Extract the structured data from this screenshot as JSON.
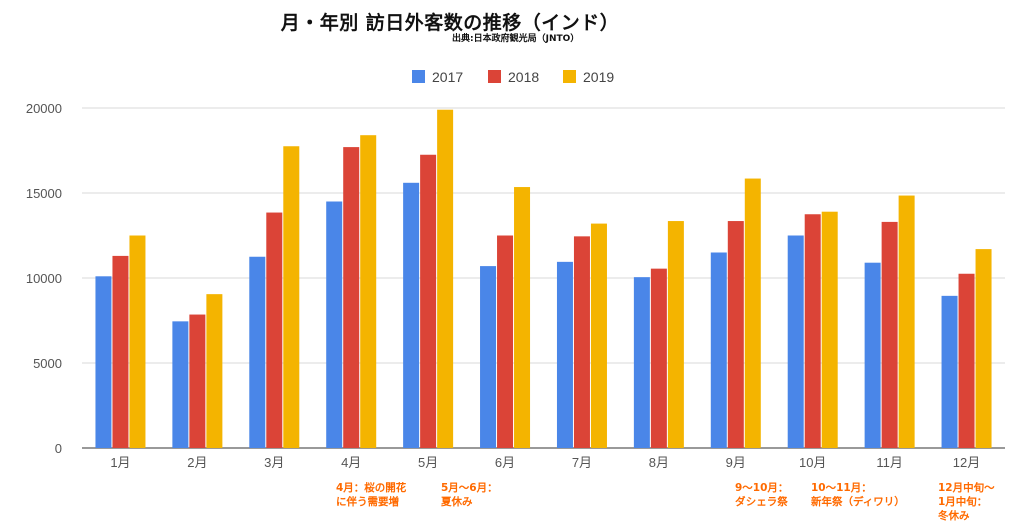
{
  "title": "月・年別 訪日外客数の推移（インド）",
  "source": "出典:日本政府観光局（JNTO）",
  "colors": {
    "s2017": "#4a86e8",
    "s2018": "#db4437",
    "s2019": "#f4b400",
    "grid": "#d9d9d9",
    "note": "#ff6a00"
  },
  "chart_data": {
    "type": "bar",
    "categories": [
      "1月",
      "2月",
      "3月",
      "4月",
      "5月",
      "6月",
      "7月",
      "8月",
      "9月",
      "10月",
      "11月",
      "12月"
    ],
    "series": [
      {
        "name": "2017",
        "color": "#4a86e8",
        "values": [
          10100,
          7450,
          11250,
          14500,
          15600,
          10700,
          10950,
          10050,
          11500,
          12500,
          10900,
          8950
        ]
      },
      {
        "name": "2018",
        "color": "#db4437",
        "values": [
          11300,
          7850,
          13850,
          17700,
          17250,
          12500,
          12450,
          10550,
          13350,
          13750,
          13300,
          10250
        ]
      },
      {
        "name": "2019",
        "color": "#f4b400",
        "values": [
          12500,
          9050,
          17750,
          18400,
          19900,
          15350,
          13200,
          13350,
          15850,
          13900,
          14850,
          11700
        ]
      }
    ],
    "ylim": [
      0,
      20000
    ],
    "yticks": [
      0,
      5000,
      10000,
      15000,
      20000
    ],
    "legend_position": "top-center",
    "grid": true
  },
  "annotations": [
    {
      "lines": [
        "4月：桜の開花",
        "に伴う需要増"
      ]
    },
    {
      "lines": [
        "5月〜6月：",
        "夏休み"
      ]
    },
    {
      "lines": [
        "9〜10月：",
        "ダシェラ祭"
      ]
    },
    {
      "lines": [
        "10〜11月：",
        "新年祭（ディワリ）"
      ]
    },
    {
      "lines": [
        "12月中旬〜",
        "1月中旬：",
        "冬休み"
      ]
    }
  ]
}
